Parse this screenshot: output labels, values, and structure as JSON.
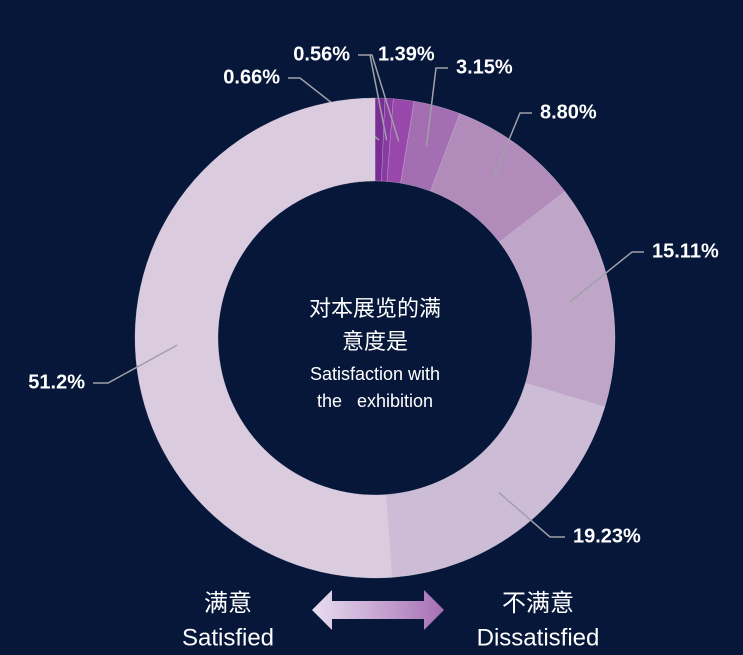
{
  "chart_data": {
    "type": "donut",
    "center_title_lines": [
      "对本展览的满",
      "意度是"
    ],
    "center_subtitle_lines": [
      "Satisfaction with",
      "the   exhibition"
    ],
    "values": [
      0.66,
      0.56,
      1.39,
      3.15,
      8.8,
      15.11,
      19.23,
      51.2
    ],
    "value_labels": [
      "0.66%",
      "0.56%",
      "1.39%",
      "3.15%",
      "8.80%",
      "15.11%",
      "19.23%",
      "51.2%"
    ],
    "colors": [
      "#7a2e95",
      "#8a3aa3",
      "#9848ab",
      "#a46eb2",
      "#b18cba",
      "#bfa6c8",
      "#cdbcd6",
      "#dacbdf"
    ],
    "legend": {
      "left": [
        "满意",
        "Satisfied"
      ],
      "right": [
        "不满意",
        "Dissatisfied"
      ]
    }
  }
}
